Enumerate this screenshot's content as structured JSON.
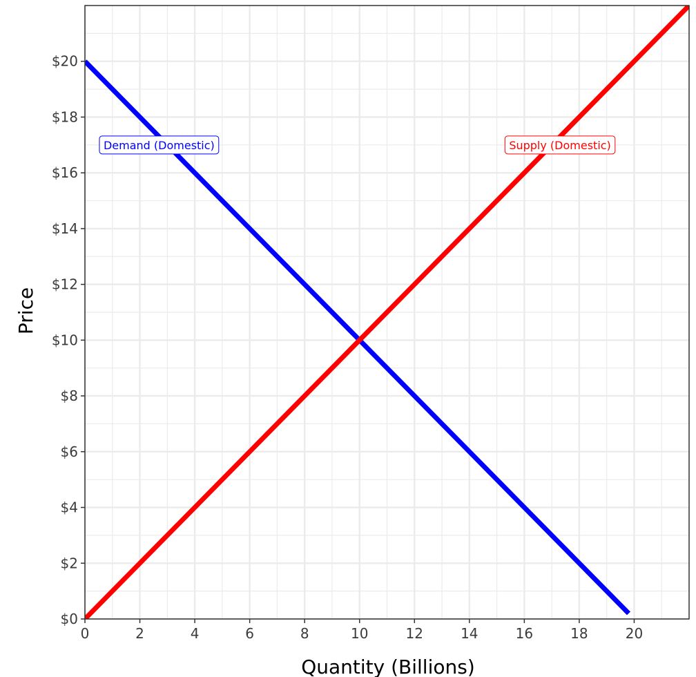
{
  "chart_data": {
    "type": "line",
    "title": "",
    "xlabel": "Quantity (Billions)",
    "ylabel": "Price",
    "xlim": [
      0,
      22
    ],
    "ylim": [
      0,
      22
    ],
    "x_ticks": [
      0,
      2,
      4,
      6,
      8,
      10,
      12,
      14,
      16,
      18,
      20
    ],
    "x_tick_labels": [
      "0",
      "2",
      "4",
      "6",
      "8",
      "10",
      "12",
      "14",
      "16",
      "18",
      "20"
    ],
    "y_ticks": [
      0,
      2,
      4,
      6,
      8,
      10,
      12,
      14,
      16,
      18,
      20
    ],
    "y_tick_labels": [
      "$0",
      "$2",
      "$4",
      "$6",
      "$8",
      "$10",
      "$12",
      "$14",
      "$16",
      "$18",
      "$20"
    ],
    "grid": true,
    "legend": "none",
    "series": [
      {
        "name": "Demand (Domestic)",
        "color": "#0000ff",
        "x": [
          0,
          19.8
        ],
        "y": [
          20,
          0.2
        ],
        "label_at": [
          2.7,
          17
        ]
      },
      {
        "name": "Supply (Domestic)",
        "color": "#ff0000",
        "x": [
          0,
          22
        ],
        "y": [
          0,
          22
        ],
        "label_at": [
          17.3,
          17
        ]
      }
    ]
  }
}
